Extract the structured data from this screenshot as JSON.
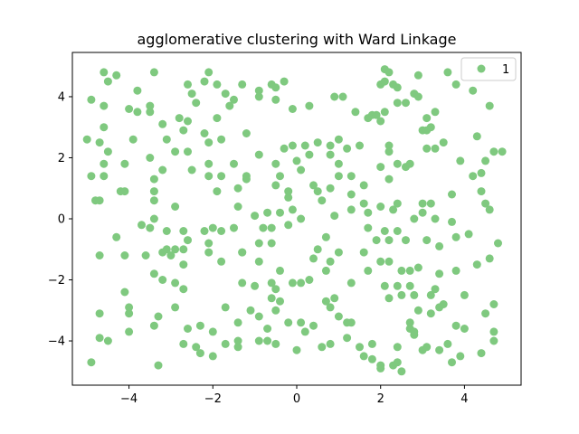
{
  "chart_data": {
    "type": "scatter",
    "title": "agglomerative clustering with Ward Linkage",
    "xlabel": "",
    "ylabel": "",
    "xlim": [
      -5.35,
      5.35
    ],
    "ylim": [
      -5.45,
      5.45
    ],
    "xticks": [
      -4,
      -2,
      0,
      2,
      4
    ],
    "yticks": [
      -4,
      -2,
      0,
      2,
      4
    ],
    "xtick_labels": [
      "−4",
      "−2",
      "0",
      "2",
      "4"
    ],
    "ytick_labels": [
      "−4",
      "−2",
      "0",
      "2",
      "4"
    ],
    "grid": false,
    "legend_position": "top-right",
    "series": [
      {
        "name": "1",
        "color": "#7fc97f",
        "points": [
          [
            -4.6,
            4.8
          ],
          [
            -4.3,
            4.7
          ],
          [
            -3.4,
            4.8
          ],
          [
            -4.5,
            4.5
          ],
          [
            -4.9,
            3.9
          ],
          [
            -4.6,
            3.7
          ],
          [
            -4.0,
            3.6
          ],
          [
            -3.8,
            3.5
          ],
          [
            -3.5,
            3.7
          ],
          [
            -3.5,
            3.5
          ],
          [
            -3.2,
            3.1
          ],
          [
            -3.8,
            4.2
          ],
          [
            -5.0,
            2.6
          ],
          [
            -4.7,
            2.5
          ],
          [
            -4.6,
            3.0
          ],
          [
            -4.5,
            2.2
          ],
          [
            -4.6,
            1.8
          ],
          [
            -4.9,
            1.4
          ],
          [
            -4.6,
            1.4
          ],
          [
            -4.1,
            1.8
          ],
          [
            -3.9,
            2.6
          ],
          [
            -3.1,
            2.6
          ],
          [
            -3.5,
            2.0
          ],
          [
            -3.4,
            1.3
          ],
          [
            -3.2,
            1.6
          ],
          [
            -2.9,
            2.2
          ],
          [
            -2.6,
            2.2
          ],
          [
            -2.5,
            1.6
          ],
          [
            -4.8,
            0.6
          ],
          [
            -4.7,
            0.6
          ],
          [
            -4.2,
            0.9
          ],
          [
            -4.1,
            0.9
          ],
          [
            -3.4,
            0.9
          ],
          [
            -3.4,
            0.6
          ],
          [
            -3.7,
            -0.2
          ],
          [
            -3.4,
            0.0
          ],
          [
            -3.5,
            -0.3
          ],
          [
            -3.1,
            -0.4
          ],
          [
            -2.9,
            0.4
          ],
          [
            -4.3,
            -0.6
          ],
          [
            -4.1,
            -1.2
          ],
          [
            -3.6,
            -1.2
          ],
          [
            -3.2,
            -1.1
          ],
          [
            -3.1,
            -1.0
          ],
          [
            -2.9,
            -1.0
          ],
          [
            -2.7,
            -1.0
          ],
          [
            -2.7,
            -0.4
          ],
          [
            -2.6,
            -0.7
          ],
          [
            -3.4,
            -1.8
          ],
          [
            -3.2,
            -2.0
          ],
          [
            -3.0,
            -1.2
          ],
          [
            -2.7,
            -1.5
          ],
          [
            -2.9,
            -2.1
          ],
          [
            -2.7,
            -2.3
          ],
          [
            -4.7,
            -1.2
          ],
          [
            -4.1,
            -2.4
          ],
          [
            -4.0,
            -2.9
          ],
          [
            -4.0,
            -3.1
          ],
          [
            -3.4,
            -3.5
          ],
          [
            -3.3,
            -3.2
          ],
          [
            -2.9,
            -2.9
          ],
          [
            -2.6,
            -3.6
          ],
          [
            -4.7,
            -3.1
          ],
          [
            -4.7,
            -3.9
          ],
          [
            -4.5,
            -4.0
          ],
          [
            -4.0,
            -3.7
          ],
          [
            -2.7,
            -4.1
          ],
          [
            -2.4,
            -4.2
          ],
          [
            -2.3,
            -4.4
          ],
          [
            -2.0,
            -4.5
          ],
          [
            -1.7,
            -4.1
          ],
          [
            -3.3,
            -4.8
          ],
          [
            -4.9,
            -4.7
          ],
          [
            -2.6,
            4.4
          ],
          [
            -2.5,
            4.1
          ],
          [
            -2.4,
            3.8
          ],
          [
            -2.2,
            4.5
          ],
          [
            -2.1,
            4.8
          ],
          [
            -1.9,
            4.4
          ],
          [
            -1.7,
            4.1
          ],
          [
            -1.3,
            4.4
          ],
          [
            -1.6,
            3.7
          ],
          [
            -1.5,
            3.9
          ],
          [
            -2.8,
            3.3
          ],
          [
            -2.6,
            3.2
          ],
          [
            -2.2,
            2.8
          ],
          [
            -2.1,
            2.5
          ],
          [
            -1.8,
            2.6
          ],
          [
            -1.9,
            3.3
          ],
          [
            -1.2,
            2.8
          ],
          [
            -2.7,
            2.9
          ],
          [
            -2.1,
            1.4
          ],
          [
            -1.8,
            1.4
          ],
          [
            -1.5,
            1.8
          ],
          [
            -1.2,
            1.4
          ],
          [
            -2.1,
            1.8
          ],
          [
            -1.4,
            1.0
          ],
          [
            -1.2,
            1.3
          ],
          [
            -0.9,
            4.2
          ],
          [
            -0.9,
            4.0
          ],
          [
            -0.6,
            4.4
          ],
          [
            -0.5,
            4.3
          ],
          [
            -0.3,
            4.5
          ],
          [
            -0.5,
            3.9
          ],
          [
            -0.1,
            3.6
          ],
          [
            0.3,
            3.7
          ],
          [
            -0.9,
            2.1
          ],
          [
            -0.5,
            1.8
          ],
          [
            -0.3,
            2.3
          ],
          [
            -0.1,
            2.4
          ],
          [
            0.2,
            2.4
          ],
          [
            0.3,
            2.1
          ],
          [
            0.0,
            1.9
          ],
          [
            0.1,
            1.6
          ],
          [
            -0.4,
            1.4
          ],
          [
            -0.5,
            1.1
          ],
          [
            -0.2,
            0.9
          ],
          [
            -0.2,
            0.7
          ],
          [
            -0.1,
            0.3
          ],
          [
            0.1,
            0.0
          ],
          [
            0.4,
            1.1
          ],
          [
            0.5,
            0.9
          ],
          [
            0.6,
            0.6
          ],
          [
            -1.0,
            0.1
          ],
          [
            -0.7,
            0.2
          ],
          [
            -0.4,
            0.2
          ],
          [
            -0.2,
            -0.2
          ],
          [
            -0.6,
            -0.3
          ],
          [
            -0.8,
            -0.3
          ],
          [
            -0.6,
            -0.8
          ],
          [
            -1.4,
            0.4
          ],
          [
            -1.5,
            -0.3
          ],
          [
            -1.8,
            -0.4
          ],
          [
            -2.0,
            -0.3
          ],
          [
            -2.1,
            -0.8
          ],
          [
            -2.2,
            -0.4
          ],
          [
            -1.9,
            0.9
          ],
          [
            -2.1,
            -1.1
          ],
          [
            -1.8,
            -1.4
          ],
          [
            -1.3,
            -1.1
          ],
          [
            -1.3,
            -1.1
          ],
          [
            -0.9,
            -0.8
          ],
          [
            -0.9,
            -1.4
          ],
          [
            -0.4,
            -1.7
          ],
          [
            -0.5,
            -2.3
          ],
          [
            -0.1,
            -2.1
          ],
          [
            0.4,
            -1.3
          ],
          [
            0.5,
            -1.0
          ],
          [
            0.7,
            -0.6
          ],
          [
            0.8,
            -1.4
          ],
          [
            0.7,
            -1.7
          ],
          [
            0.3,
            -2.0
          ],
          [
            0.1,
            -2.1
          ],
          [
            1.0,
            -1.1
          ],
          [
            1.3,
            -2.1
          ],
          [
            1.6,
            -1.1
          ],
          [
            -1.3,
            -2.1
          ],
          [
            -1.0,
            -2.2
          ],
          [
            -0.6,
            -2.1
          ],
          [
            -0.6,
            -2.6
          ],
          [
            -0.5,
            -3.0
          ],
          [
            -0.4,
            -2.7
          ],
          [
            -1.7,
            -2.9
          ],
          [
            -2.0,
            -3.7
          ],
          [
            -2.3,
            -3.5
          ],
          [
            -1.4,
            -3.4
          ],
          [
            -1.1,
            -3.0
          ],
          [
            -0.9,
            -3.2
          ],
          [
            -0.7,
            -3.6
          ],
          [
            -0.7,
            -4.0
          ],
          [
            -0.9,
            -4.0
          ],
          [
            -1.4,
            -4.0
          ],
          [
            -1.4,
            -4.2
          ],
          [
            -0.5,
            -4.1
          ],
          [
            -0.2,
            -3.4
          ],
          [
            0.1,
            -3.4
          ],
          [
            0.4,
            -3.5
          ],
          [
            0.2,
            -3.7
          ],
          [
            0.0,
            -4.3
          ],
          [
            0.8,
            -2.9
          ],
          [
            0.7,
            -2.7
          ],
          [
            0.9,
            -2.6
          ],
          [
            1.0,
            -3.2
          ],
          [
            1.2,
            -3.4
          ],
          [
            1.3,
            -3.4
          ],
          [
            1.2,
            -3.9
          ],
          [
            1.5,
            -4.2
          ],
          [
            0.8,
            -4.1
          ],
          [
            0.6,
            -4.2
          ],
          [
            1.8,
            -4.1
          ],
          [
            1.6,
            -4.5
          ],
          [
            1.8,
            -4.6
          ],
          [
            2.0,
            -4.9
          ],
          [
            2.0,
            -4.8
          ],
          [
            2.3,
            -4.8
          ],
          [
            2.4,
            -4.7
          ],
          [
            2.5,
            -5.0
          ],
          [
            2.4,
            -4.2
          ],
          [
            2.7,
            -3.6
          ],
          [
            2.8,
            -3.8
          ],
          [
            2.8,
            -3.7
          ],
          [
            3.0,
            -4.3
          ],
          [
            3.1,
            -4.2
          ],
          [
            3.4,
            -4.3
          ],
          [
            3.6,
            -4.1
          ],
          [
            3.9,
            -4.5
          ],
          [
            3.7,
            -4.7
          ],
          [
            4.0,
            -3.6
          ],
          [
            3.8,
            -3.5
          ],
          [
            4.4,
            -4.4
          ],
          [
            4.7,
            -4.0
          ],
          [
            4.7,
            -3.7
          ],
          [
            2.7,
            -3.4
          ],
          [
            2.9,
            -3.0
          ],
          [
            3.2,
            -3.1
          ],
          [
            3.4,
            -2.9
          ],
          [
            3.5,
            -2.8
          ],
          [
            4.0,
            -2.5
          ],
          [
            3.2,
            -2.5
          ],
          [
            3.3,
            -2.3
          ],
          [
            3.4,
            -1.8
          ],
          [
            3.8,
            -1.7
          ],
          [
            4.3,
            -1.5
          ],
          [
            4.6,
            -1.3
          ],
          [
            4.5,
            -3.1
          ],
          [
            4.7,
            -2.8
          ],
          [
            2.2,
            -2.6
          ],
          [
            2.5,
            -2.5
          ],
          [
            2.7,
            -2.2
          ],
          [
            2.8,
            -2.5
          ],
          [
            2.1,
            -2.2
          ],
          [
            2.4,
            -2.2
          ],
          [
            2.2,
            -1.4
          ],
          [
            2.0,
            -1.4
          ],
          [
            1.7,
            -1.7
          ],
          [
            2.5,
            -1.7
          ],
          [
            2.7,
            -1.7
          ],
          [
            2.9,
            -1.6
          ],
          [
            1.9,
            -0.7
          ],
          [
            2.2,
            -0.7
          ],
          [
            2.6,
            -0.7
          ],
          [
            3.1,
            -0.7
          ],
          [
            3.4,
            -0.9
          ],
          [
            3.8,
            -0.6
          ],
          [
            4.1,
            -0.5
          ],
          [
            4.8,
            -0.8
          ],
          [
            1.7,
            -0.3
          ],
          [
            2.1,
            -0.4
          ],
          [
            2.4,
            -0.4
          ],
          [
            2.8,
            0.0
          ],
          [
            3.0,
            0.2
          ],
          [
            3.3,
            0.0
          ],
          [
            3.7,
            -0.1
          ],
          [
            1.6,
            0.5
          ],
          [
            1.7,
            0.2
          ],
          [
            2.0,
            0.4
          ],
          [
            2.3,
            0.3
          ],
          [
            2.4,
            0.5
          ],
          [
            3.0,
            0.5
          ],
          [
            3.2,
            0.5
          ],
          [
            3.7,
            0.8
          ],
          [
            4.5,
            0.5
          ],
          [
            4.6,
            0.3
          ],
          [
            4.4,
            0.9
          ],
          [
            4.4,
            1.5
          ],
          [
            3.9,
            1.9
          ],
          [
            4.2,
            1.4
          ],
          [
            4.5,
            1.9
          ],
          [
            4.7,
            2.2
          ],
          [
            4.9,
            2.2
          ],
          [
            4.3,
            2.7
          ],
          [
            2.2,
            1.3
          ],
          [
            2.4,
            1.8
          ],
          [
            2.6,
            1.7
          ],
          [
            2.7,
            1.8
          ],
          [
            2.0,
            1.7
          ],
          [
            1.5,
            2.4
          ],
          [
            1.2,
            2.3
          ],
          [
            1.0,
            2.6
          ],
          [
            0.8,
            2.4
          ],
          [
            0.5,
            2.5
          ],
          [
            0.8,
            2.1
          ],
          [
            1.0,
            1.8
          ],
          [
            1.3,
            1.4
          ],
          [
            1.0,
            1.4
          ],
          [
            0.8,
            1.0
          ],
          [
            1.3,
            0.8
          ],
          [
            1.3,
            0.3
          ],
          [
            0.9,
            0.1
          ],
          [
            1.6,
            1.1
          ],
          [
            1.7,
            3.3
          ],
          [
            1.8,
            3.4
          ],
          [
            1.9,
            3.4
          ],
          [
            2.0,
            4.4
          ],
          [
            2.1,
            4.5
          ],
          [
            2.1,
            4.9
          ],
          [
            2.2,
            4.8
          ],
          [
            2.3,
            4.4
          ],
          [
            2.4,
            4.3
          ],
          [
            2.4,
            3.8
          ],
          [
            2.6,
            3.8
          ],
          [
            2.8,
            4.1
          ],
          [
            2.9,
            4.0
          ],
          [
            2.9,
            4.7
          ],
          [
            3.1,
            3.3
          ],
          [
            3.3,
            3.5
          ],
          [
            3.0,
            2.9
          ],
          [
            3.1,
            2.9
          ],
          [
            3.2,
            3.0
          ],
          [
            3.5,
            2.5
          ],
          [
            3.1,
            2.3
          ],
          [
            3.3,
            2.3
          ],
          [
            3.6,
            4.8
          ],
          [
            3.8,
            4.4
          ],
          [
            4.2,
            4.2
          ],
          [
            4.6,
            3.7
          ],
          [
            2.2,
            2.4
          ],
          [
            2.2,
            2.2
          ],
          [
            2.1,
            3.5
          ],
          [
            2.0,
            3.2
          ],
          [
            1.4,
            3.5
          ],
          [
            1.1,
            4.0
          ],
          [
            0.9,
            4.0
          ]
        ]
      }
    ]
  }
}
